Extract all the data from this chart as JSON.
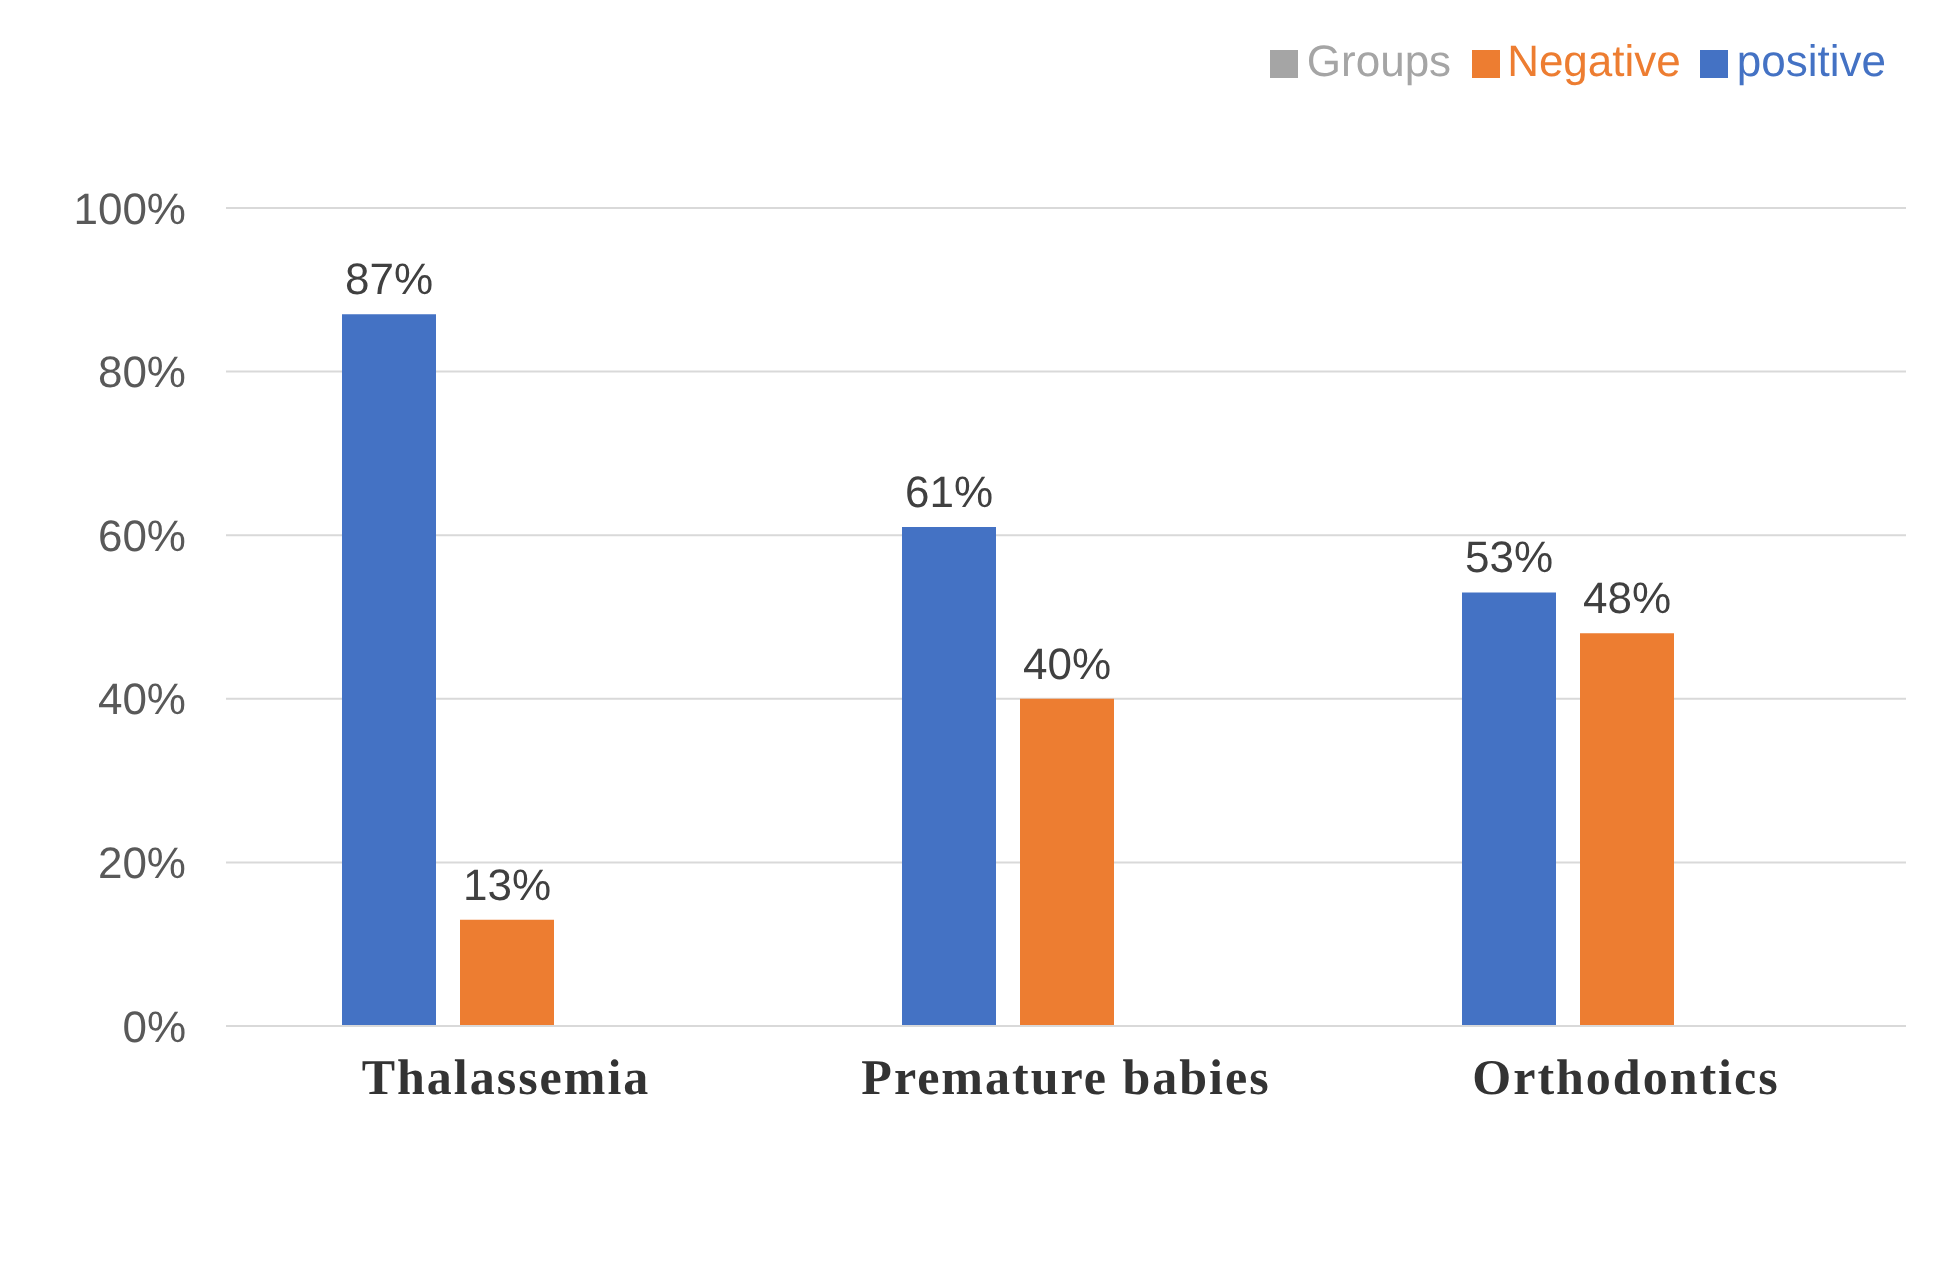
{
  "chart_data": {
    "type": "bar",
    "categories": [
      "Thalassemia",
      "Premature babies",
      "Orthodontics"
    ],
    "series": [
      {
        "name": "positive",
        "color": "#4472c4",
        "values": [
          87,
          61,
          53
        ],
        "value_labels": [
          "87%",
          "61%",
          "53%"
        ]
      },
      {
        "name": "Negative",
        "color": "#ed7d31",
        "values": [
          13,
          40,
          48
        ],
        "value_labels": [
          "13%",
          "40%",
          "48%"
        ]
      },
      {
        "name": "Groups",
        "color": "#a5a5a5",
        "values": [
          null,
          null,
          null
        ]
      }
    ],
    "ylim": [
      0,
      100
    ],
    "yticks": [
      {
        "value": 0,
        "label": "0%"
      },
      {
        "value": 20,
        "label": "20%"
      },
      {
        "value": 40,
        "label": "40%"
      },
      {
        "value": 60,
        "label": "60%"
      },
      {
        "value": 80,
        "label": "80%"
      },
      {
        "value": 100,
        "label": "100%"
      }
    ],
    "grid": "y",
    "legend": "top right"
  }
}
